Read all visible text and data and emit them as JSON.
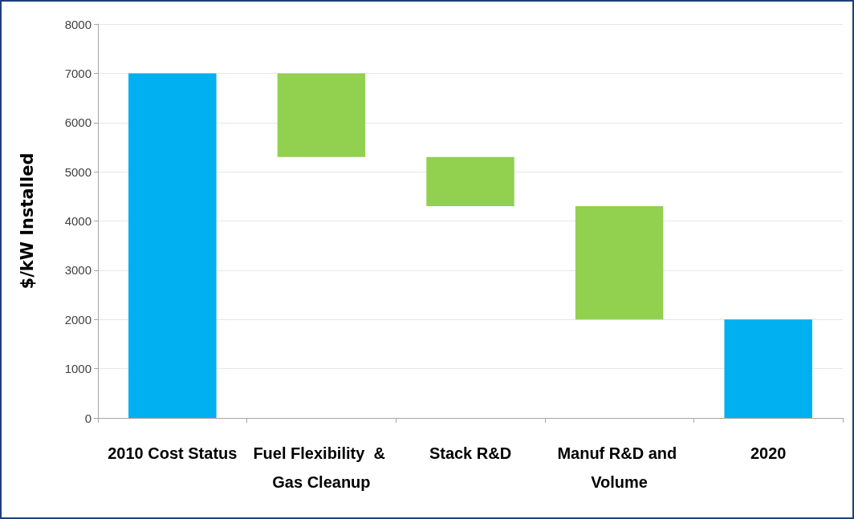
{
  "chart_data": {
    "type": "bar",
    "ylabel": "$/kW Installed",
    "categories": [
      "2010 Cost Status",
      "Fuel Flexibility  & Gas Cleanup",
      "Stack R&D",
      "Manuf R&D and Volume",
      "2020"
    ],
    "values": [
      7000,
      1700,
      1000,
      2300,
      2000
    ],
    "base": [
      0,
      5300,
      4300,
      2000,
      0
    ],
    "colors": [
      "#00b0f0",
      "#92d050",
      "#92d050",
      "#92d050",
      "#00b0f0"
    ],
    "ylim": [
      0,
      8000
    ],
    "yticks": [
      0,
      1000,
      2000,
      3000,
      4000,
      5000,
      6000,
      7000,
      8000
    ],
    "grid": "y"
  }
}
